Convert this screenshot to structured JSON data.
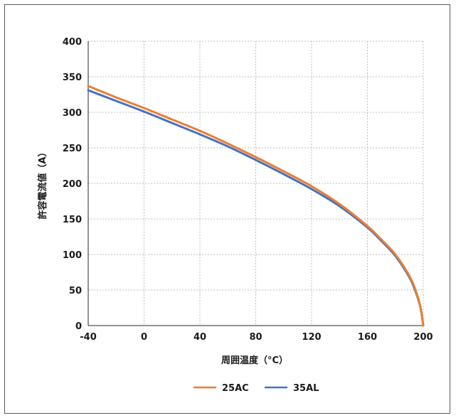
{
  "chart_data": {
    "type": "line",
    "title": "",
    "xlabel": "周囲温度（°C）",
    "ylabel": "許容電流値（A）",
    "xlim": [
      -40,
      200
    ],
    "ylim": [
      0,
      400
    ],
    "xticks": [
      "-40",
      "0",
      "40",
      "80",
      "120",
      "160",
      "200"
    ],
    "yticks": [
      "0",
      "50",
      "100",
      "150",
      "200",
      "250",
      "300",
      "350",
      "400"
    ],
    "grid": true,
    "legend_position": "bottom",
    "series": [
      {
        "name": "25AC",
        "color": "#ed7d31",
        "x": [
          -40,
          -20,
          0,
          20,
          40,
          60,
          80,
          100,
          120,
          140,
          160,
          170,
          180,
          190,
          195,
          198,
          200
        ],
        "y": [
          337,
          321,
          306,
          290,
          274,
          256,
          237,
          217,
          196,
          171,
          140,
          121,
          100,
          70,
          47,
          26,
          0
        ]
      },
      {
        "name": "35AL",
        "color": "#4472c4",
        "x": [
          -40,
          -20,
          0,
          20,
          40,
          60,
          80,
          100,
          120,
          140,
          160,
          170,
          180,
          190,
          195,
          198,
          200
        ],
        "y": [
          331,
          316,
          301,
          285,
          269,
          252,
          233,
          213,
          192,
          168,
          138,
          119,
          98,
          68,
          45,
          25,
          0
        ]
      }
    ]
  }
}
